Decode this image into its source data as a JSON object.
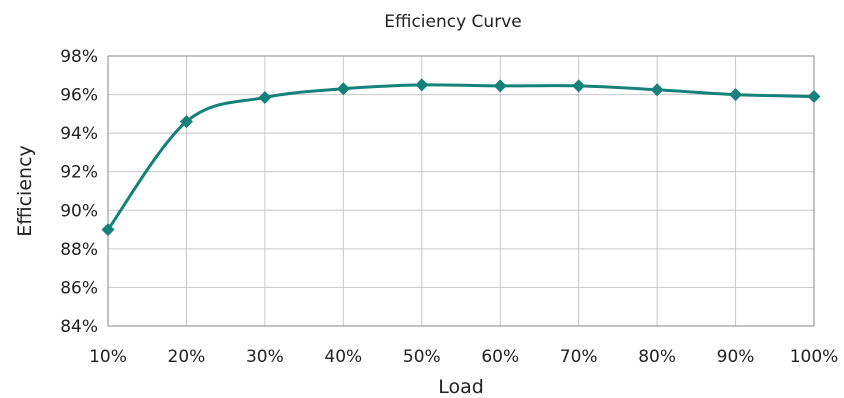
{
  "chart_data": {
    "type": "line",
    "title": "Efficiency Curve",
    "xlabel": "Load",
    "ylabel": "Efficiency",
    "x": [
      10,
      20,
      30,
      40,
      50,
      60,
      70,
      80,
      90,
      100
    ],
    "x_tick_labels": [
      "10%",
      "20%",
      "30%",
      "40%",
      "50%",
      "60%",
      "70%",
      "80%",
      "90%",
      "100%"
    ],
    "series": [
      {
        "values": [
          89.0,
          94.6,
          95.85,
          96.3,
          96.5,
          96.45,
          96.45,
          96.25,
          96.0,
          95.9
        ]
      }
    ],
    "ylim": [
      84,
      98
    ],
    "y_ticks": [
      84,
      86,
      88,
      90,
      92,
      94,
      96,
      98
    ],
    "y_tick_labels": [
      "84%",
      "86%",
      "88%",
      "90%",
      "92%",
      "94%",
      "96%",
      "98%"
    ],
    "xlim": [
      10,
      100
    ],
    "grid": true,
    "smooth": true,
    "marker": "diamond",
    "colors": {
      "series": "#16817a",
      "grid": "#c8c8c8",
      "border": "#8a8a8a"
    }
  }
}
